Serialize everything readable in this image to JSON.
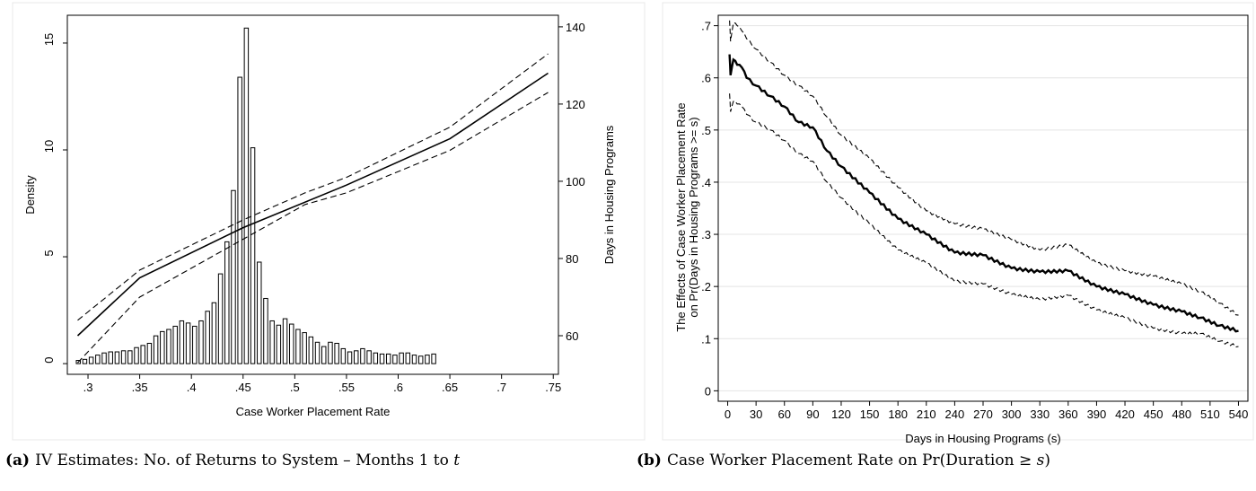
{
  "captions": {
    "a": {
      "letter": "(a)",
      "text": "IV Estimates: No. of Returns to System – Months 1 to",
      "var": "t"
    },
    "b": {
      "letter": "(b)",
      "text": "Case Worker Placement Rate on Pr(Duration ≥",
      "var": "s",
      "close": ")"
    }
  },
  "chart_data": [
    {
      "type": "bar",
      "id": "a",
      "xlabel": "Case Worker Placement Rate",
      "ylabel": "Density",
      "ylabel_right": "Days in Housing Programs",
      "xlim": [
        0.28,
        0.755
      ],
      "ylim": [
        -0.5,
        16.3
      ],
      "ylim_right": [
        50,
        143
      ],
      "xticks": [
        ".3",
        ".35",
        ".4",
        ".45",
        ".5",
        ".55",
        ".6",
        ".65",
        ".7",
        ".75"
      ],
      "xtick_values": [
        0.3,
        0.35,
        0.4,
        0.45,
        0.5,
        0.55,
        0.6,
        0.65,
        0.7,
        0.75
      ],
      "yticks": [
        "0",
        "5",
        "10",
        "15"
      ],
      "ytick_values": [
        0,
        5,
        10,
        15
      ],
      "yticks_right": [
        "60",
        "80",
        "100",
        "120",
        "140"
      ],
      "ytick_values_right": [
        60,
        80,
        100,
        120,
        140
      ],
      "bin_width": 0.00625,
      "bins_start": 0.2875,
      "bar_values": [
        0.15,
        0.2,
        0.3,
        0.4,
        0.5,
        0.55,
        0.55,
        0.6,
        0.6,
        0.75,
        0.85,
        0.95,
        1.3,
        1.5,
        1.6,
        1.75,
        2.0,
        1.9,
        1.75,
        2.0,
        2.45,
        2.85,
        4.2,
        5.7,
        8.1,
        13.4,
        15.7,
        10.1,
        4.75,
        3.05,
        2.0,
        1.8,
        2.1,
        1.85,
        1.6,
        1.45,
        1.25,
        1.0,
        0.8,
        1.0,
        0.95,
        0.7,
        0.55,
        0.6,
        0.7,
        0.6,
        0.5,
        0.45,
        0.45,
        0.4,
        0.5,
        0.5,
        0.4,
        0.35,
        0.4,
        0.45
      ],
      "series": [
        {
          "style": "solid",
          "x": [
            0.29,
            0.35,
            0.45,
            0.55,
            0.65,
            0.745
          ],
          "y": [
            60,
            75,
            88,
            99,
            111,
            128
          ]
        },
        {
          "style": "dashed",
          "x": [
            0.29,
            0.35,
            0.45,
            0.51,
            0.55,
            0.65,
            0.745
          ],
          "y": [
            64,
            77,
            90,
            97,
            101,
            114,
            133
          ]
        },
        {
          "style": "dashed",
          "x": [
            0.29,
            0.35,
            0.45,
            0.51,
            0.55,
            0.65,
            0.745
          ],
          "y": [
            53,
            70,
            85,
            94,
            97,
            108,
            123
          ]
        }
      ]
    },
    {
      "type": "line",
      "id": "b",
      "xlabel": "Days in Housing Programs (s)",
      "ylabel": "The Effects of Case Worker Placement Rate",
      "ylabel2": "on Pr(Days in Housing Programs >= s)",
      "xlim": [
        -10,
        550
      ],
      "ylim": [
        -0.02,
        0.72
      ],
      "grid": true,
      "xticks": [
        "0",
        "30",
        "60",
        "90",
        "120",
        "150",
        "180",
        "210",
        "240",
        "270",
        "300",
        "330",
        "360",
        "390",
        "420",
        "450",
        "480",
        "510",
        "540"
      ],
      "xtick_values": [
        0,
        30,
        60,
        90,
        120,
        150,
        180,
        210,
        240,
        270,
        300,
        330,
        360,
        390,
        420,
        450,
        480,
        510,
        540
      ],
      "yticks": [
        "0",
        ".1",
        ".2",
        ".3",
        ".4",
        ".5",
        ".6",
        ".7"
      ],
      "ytick_values": [
        0,
        0.1,
        0.2,
        0.3,
        0.4,
        0.5,
        0.6,
        0.7
      ],
      "series": [
        {
          "style": "solid-bold",
          "x": [
            2,
            3,
            6,
            10,
            15,
            20,
            30,
            45,
            60,
            75,
            90,
            105,
            120,
            150,
            180,
            210,
            240,
            270,
            300,
            330,
            360,
            390,
            420,
            450,
            480,
            500,
            520,
            540
          ],
          "y": [
            0.645,
            0.605,
            0.635,
            0.625,
            0.62,
            0.6,
            0.585,
            0.565,
            0.545,
            0.515,
            0.505,
            0.46,
            0.43,
            0.38,
            0.33,
            0.3,
            0.265,
            0.26,
            0.235,
            0.228,
            0.23,
            0.2,
            0.185,
            0.165,
            0.152,
            0.14,
            0.125,
            0.115
          ]
        },
        {
          "style": "dashed",
          "x": [
            2,
            3,
            6,
            10,
            15,
            20,
            30,
            45,
            60,
            75,
            90,
            105,
            120,
            150,
            180,
            210,
            240,
            270,
            300,
            330,
            360,
            390,
            420,
            450,
            480,
            500,
            520,
            540
          ],
          "y": [
            0.71,
            0.67,
            0.705,
            0.7,
            0.69,
            0.675,
            0.655,
            0.63,
            0.605,
            0.585,
            0.565,
            0.525,
            0.49,
            0.445,
            0.39,
            0.345,
            0.32,
            0.31,
            0.29,
            0.27,
            0.28,
            0.245,
            0.23,
            0.22,
            0.205,
            0.19,
            0.168,
            0.145
          ]
        },
        {
          "style": "dashed",
          "x": [
            2,
            3,
            6,
            10,
            15,
            20,
            30,
            45,
            60,
            75,
            90,
            105,
            120,
            150,
            180,
            210,
            240,
            270,
            300,
            330,
            360,
            390,
            420,
            450,
            480,
            500,
            520,
            540
          ],
          "y": [
            0.57,
            0.535,
            0.555,
            0.55,
            0.545,
            0.53,
            0.515,
            0.5,
            0.48,
            0.455,
            0.44,
            0.4,
            0.37,
            0.32,
            0.27,
            0.245,
            0.21,
            0.205,
            0.185,
            0.175,
            0.183,
            0.155,
            0.14,
            0.12,
            0.11,
            0.11,
            0.095,
            0.085
          ]
        }
      ]
    }
  ]
}
